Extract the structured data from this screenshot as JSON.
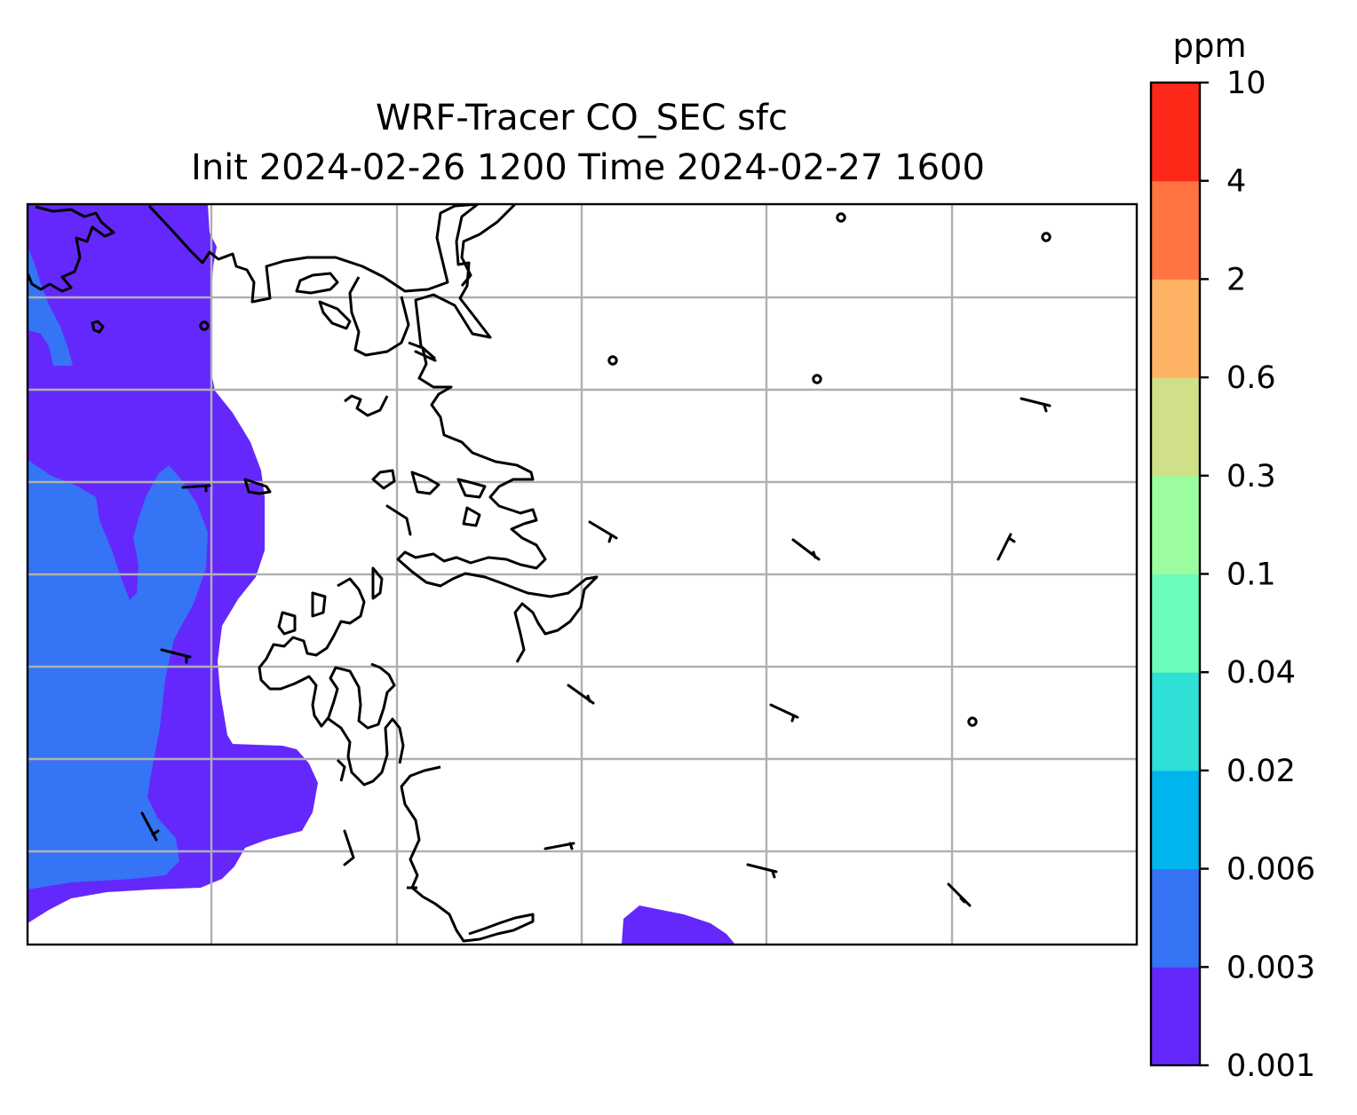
{
  "title": {
    "line1": "WRF-Tracer CO_SEC sfc",
    "line2": "Init 2024-02-26 1200 Time 2024-02-27 1600"
  },
  "colorbar": {
    "unit": "ppm",
    "levels": [
      "0.001",
      "0.003",
      "0.006",
      "0.02",
      "0.04",
      "0.1",
      "0.3",
      "0.6",
      "2",
      "4",
      "10"
    ],
    "colors": [
      "#6428fc",
      "#3574f5",
      "#00b4ee",
      "#2ee0d6",
      "#69fcba",
      "#9bfca0",
      "#cfe088",
      "#feb264",
      "#ff7440",
      "#fe2818"
    ]
  },
  "map": {
    "background": "#ffffff",
    "fill_levels_present": [
      "0.001",
      "0.003"
    ],
    "gridlines": true,
    "coastlines": true,
    "wind_barbs": true
  }
}
